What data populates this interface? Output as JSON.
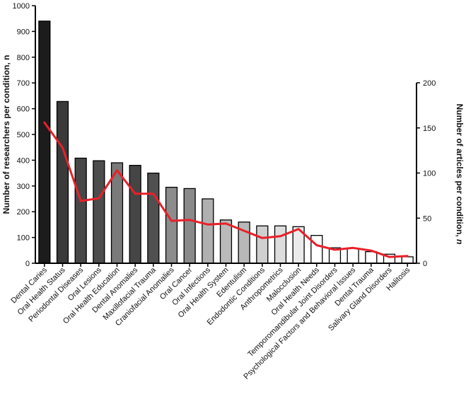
{
  "chart_data": {
    "type": "bar",
    "title": "",
    "categories": [
      "Dental Caries",
      "Oral Health Status",
      "Periodontal Diseases",
      "Oral Lesions",
      "Oral Health Education",
      "Dental Anomalies",
      "Maxillofacial Trauma",
      "Craniofacial Anomalies",
      "Oral Cancer",
      "Oral Infections",
      "Oral Health System",
      "Edentulism",
      "Endodontic Conditions",
      "Anthropometrics",
      "Malocclusion",
      "Oral Health Needs",
      "Temporomandibular Joint Disorders",
      "Psychological Factors and Behavioral Issues",
      "Dental Trauma",
      "Salivary Gland Disorders",
      "Halitosis"
    ],
    "series": [
      {
        "name": "Number of researchers per condition, n",
        "type": "bar",
        "axis": "left",
        "values": [
          940,
          628,
          408,
          398,
          390,
          380,
          350,
          295,
          290,
          250,
          168,
          160,
          145,
          145,
          142,
          108,
          60,
          58,
          45,
          35,
          25
        ],
        "colors": [
          "#1c1c1c",
          "#3a3a3a",
          "#474747",
          "#4d4d4d",
          "#7a7a7a",
          "#454545",
          "#505050",
          "#8c8c8c",
          "#8a8a8a",
          "#b0b0b0",
          "#bababa",
          "#b8b8b8",
          "#cfcfcf",
          "#dddddd",
          "#ebebeb",
          "#ffffff",
          "#ffffff",
          "#ffffff",
          "#ffffff",
          "#ffffff",
          "#ffffff"
        ]
      },
      {
        "name": "Number of articles per condition, n",
        "type": "line",
        "axis": "right",
        "color": "#e8202a",
        "values": [
          156,
          128,
          69,
          72,
          103,
          77,
          77,
          47,
          48,
          43,
          44,
          36,
          28,
          30,
          38,
          20,
          15,
          17,
          14,
          7,
          8
        ]
      }
    ],
    "ylabel": "Number of researchers per condition, n",
    "ylabel_right": "Number of articles per condition, ",
    "ylabel_right_italic": "n",
    "ylim": [
      0,
      1000
    ],
    "ylim_right": [
      0,
      200
    ],
    "yticks": [
      "0",
      "100",
      "200",
      "300",
      "400",
      "500",
      "600",
      "700",
      "800",
      "900",
      "1000"
    ],
    "yticks_right": [
      "0",
      "50",
      "100",
      "150",
      "200"
    ],
    "grid": false
  }
}
